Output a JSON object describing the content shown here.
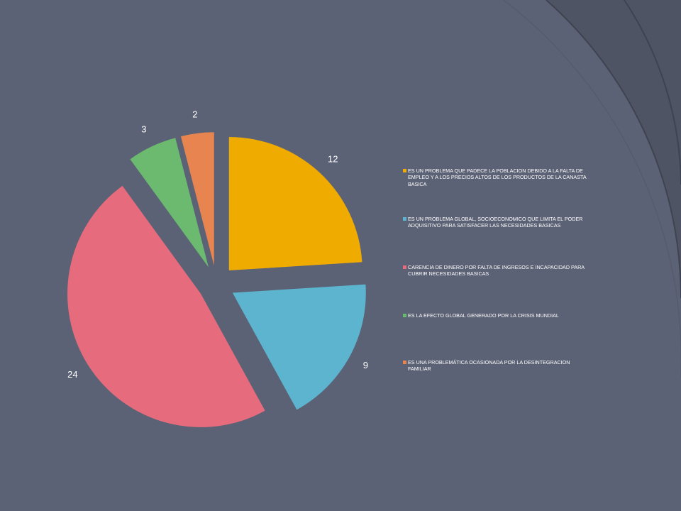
{
  "chart_data": {
    "type": "pie",
    "exploded": true,
    "legend_position": "right",
    "categories": [
      "ES UN PROBLEMA QUE PADECE LA POBLACION DEBIDO A LA FALTA DE EMPLEO Y A LOS PRECIOS ALTOS DE LOS PRODUCTOS DE LA CANASTA BASICA",
      "ES UN PROBLEMA GLOBAL, SOCIOECONOMICO QUE LIMITA EL PODER ADQUISITIVO PARA SATISFACER LAS NECESIDADES BASICAS",
      "CARENCIA DE DINERO POR FALTA DE INGRESOS E INCAPACIDAD PARA CUBRIR NECESIDADES BASICAS",
      "ES LA EFECTO GLOBAL GENERADO POR LA CRISIS MUNDIAL",
      "ES UNA PROBLEMÁTICA OCASIONADA POR LA DESINTEGRACION FAMILIAR"
    ],
    "values": [
      12,
      9,
      24,
      3,
      2
    ],
    "value_labels": [
      "12",
      "9",
      "24",
      "3",
      "2"
    ],
    "colors": [
      "#f0ab00",
      "#5db4cf",
      "#e66c7d",
      "#6bba70",
      "#e8844f"
    ]
  },
  "theme": {
    "background": "#5c6275",
    "decor_shade": "#4f5464",
    "decor_line": "#3f4350"
  }
}
